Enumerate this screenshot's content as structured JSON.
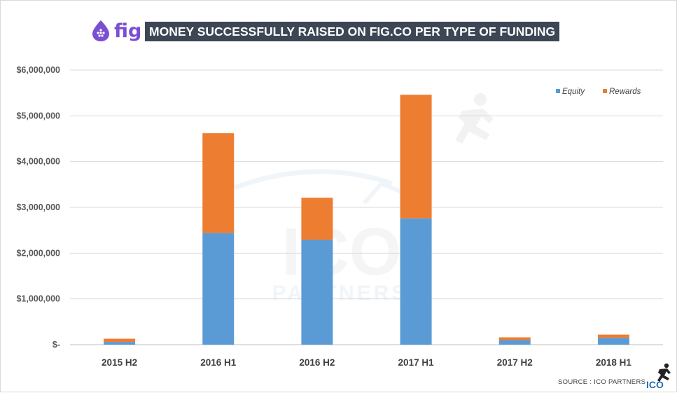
{
  "header": {
    "logo_text": "fig",
    "title": "MONEY SUCCESSFULLY RAISED ON FIG.CO PER TYPE OF FUNDING"
  },
  "footer": {
    "source": "SOURCE : ICO PARTNERS",
    "brand_mark": "ICO"
  },
  "watermark": {
    "big": "ICO",
    "small": "PARTNERS"
  },
  "colors": {
    "equity": "#5b9bd5",
    "rewards": "#ed7d31",
    "brand_purple": "#7b4fd1",
    "title_bg": "#3c4655",
    "brand_blue": "#1f6fb5"
  },
  "chart_data": {
    "type": "bar",
    "stacked": true,
    "title": "MONEY SUCCESSFULLY RAISED ON FIG.CO PER TYPE OF FUNDING",
    "categories": [
      "2015 H2",
      "2016 H1",
      "2016 H2",
      "2017 H1",
      "2017 H2",
      "2018 H1"
    ],
    "series": [
      {
        "name": "Equity",
        "color": "#5b9bd5",
        "values": [
          60000,
          2440000,
          2290000,
          2760000,
          100000,
          150000
        ]
      },
      {
        "name": "Rewards",
        "color": "#ed7d31",
        "values": [
          70000,
          2180000,
          920000,
          2700000,
          60000,
          70000
        ]
      }
    ],
    "ylim": [
      0,
      6000000
    ],
    "yticks": [
      0,
      1000000,
      2000000,
      3000000,
      4000000,
      5000000,
      6000000
    ],
    "ytick_labels": [
      "$-",
      "$1,000,000",
      "$2,000,000",
      "$3,000,000",
      "$4,000,000",
      "$5,000,000",
      "$6,000,000"
    ],
    "grid": true,
    "legend_position": "top-right",
    "xlabel": "",
    "ylabel": ""
  }
}
